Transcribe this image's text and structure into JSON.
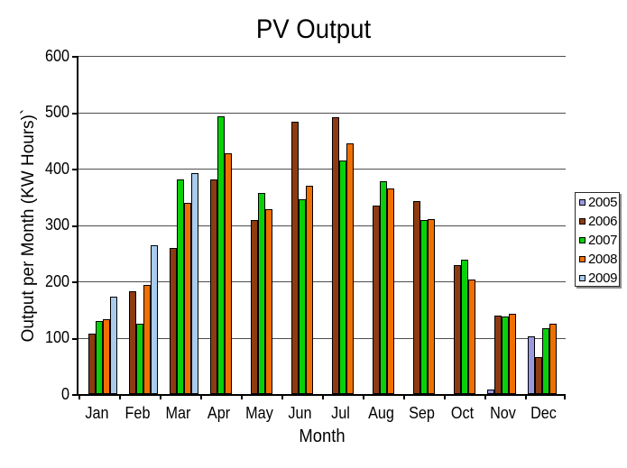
{
  "title": "PV Output",
  "x_axis": {
    "title": "Month"
  },
  "y_axis": {
    "title": "Output per Month (KW Hours)`"
  },
  "chart_data": {
    "type": "bar",
    "title": "PV Output",
    "xlabel": "Month",
    "ylabel": "Output per Month (KW Hours)`",
    "ylim": [
      0,
      600
    ],
    "ytick_step": 100,
    "grid": true,
    "legend_position": "right",
    "categories": [
      "Jan",
      "Feb",
      "Mar",
      "Apr",
      "May",
      "Jun",
      "Jul",
      "Aug",
      "Sep",
      "Oct",
      "Nov",
      "Dec"
    ],
    "series": [
      {
        "name": "2005",
        "color": "#9999E0",
        "values": [
          null,
          null,
          null,
          null,
          null,
          null,
          null,
          null,
          null,
          null,
          8,
          103
        ]
      },
      {
        "name": "2006",
        "color": "#8E3B12",
        "values": [
          107,
          183,
          259,
          381,
          308,
          483,
          491,
          335,
          342,
          229,
          139,
          66
        ]
      },
      {
        "name": "2007",
        "color": "#09D009",
        "values": [
          130,
          124,
          381,
          492,
          356,
          345,
          414,
          377,
          308,
          238,
          137,
          116
        ]
      },
      {
        "name": "2008",
        "color": "#EF7000",
        "values": [
          132,
          194,
          339,
          427,
          328,
          369,
          445,
          364,
          311,
          203,
          142,
          125
        ]
      },
      {
        "name": "2009",
        "color": "#A9CBEC",
        "values": [
          172,
          264,
          392,
          null,
          null,
          null,
          null,
          null,
          null,
          null,
          null,
          null
        ]
      }
    ]
  }
}
